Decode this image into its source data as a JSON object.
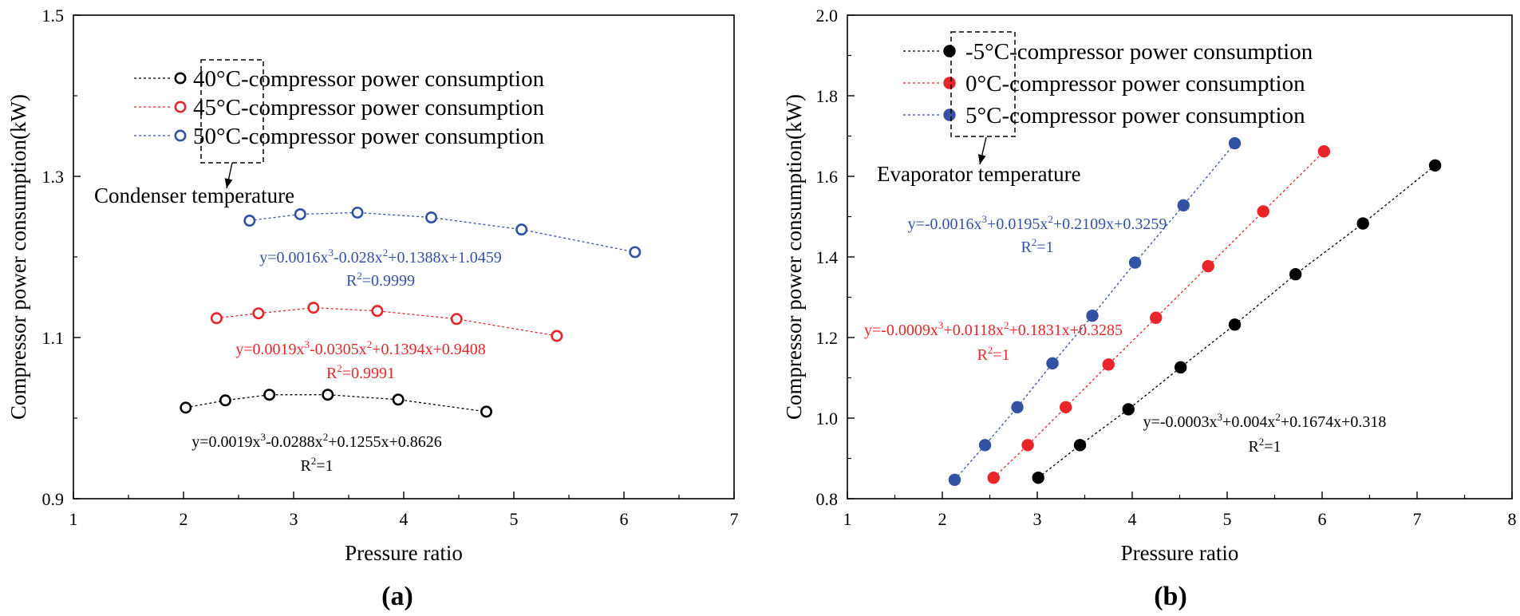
{
  "chart_data": [
    {
      "type": "line",
      "panel_label": "(a)",
      "marker": "open-circle",
      "xlabel": "Pressure ratio",
      "ylabel": "Compressor power consumption(kW)",
      "xlim": [
        1,
        7
      ],
      "ylim": [
        0.9,
        1.5
      ],
      "xticks": [
        1,
        2,
        3,
        4,
        5,
        6,
        7
      ],
      "xtick_labels": [
        "1",
        "2",
        "3",
        "4",
        "5",
        "6",
        "7"
      ],
      "yticks": [
        0.9,
        1.1,
        1.3,
        1.5
      ],
      "ytick_labels": [
        "0.9",
        "1.1",
        "1.3",
        "1.5"
      ],
      "annotation": "Condenser temperature",
      "series": [
        {
          "name": "40°C-compressor power consumption",
          "color": "#000000",
          "x": [
            2.02,
            2.38,
            2.78,
            3.31,
            3.95,
            4.75
          ],
          "y": [
            1.013,
            1.022,
            1.029,
            1.029,
            1.023,
            1.008
          ],
          "equation": "y=0.0019x3-0.0288x2+0.1255x+0.8626",
          "equation_parts": {
            "c1": "y=0.0019x",
            "e1": "3",
            "c2": "-0.0288x",
            "e2": "2",
            "c3": "+0.1255x+0.8626"
          },
          "r2": {
            "base": "R",
            "sup": "2",
            "rest": "=1"
          }
        },
        {
          "name": "45°C-compressor power consumption",
          "color": "#e8262a",
          "x": [
            2.3,
            2.68,
            3.18,
            3.76,
            4.48,
            5.39
          ],
          "y": [
            1.124,
            1.13,
            1.137,
            1.133,
            1.123,
            1.102
          ],
          "equation": "y=0.0019x3-0.0305x2+0.1394x+0.9408",
          "equation_parts": {
            "c1": "y=0.0019x",
            "e1": "3",
            "c2": "-0.0305x",
            "e2": "2",
            "c3": "+0.1394x+0.9408"
          },
          "r2": {
            "base": "R",
            "sup": "2",
            "rest": "=0.9991"
          }
        },
        {
          "name": "50°C-compressor power consumption",
          "color": "#3452a4",
          "x": [
            2.6,
            3.06,
            3.58,
            4.25,
            5.07,
            6.1
          ],
          "y": [
            1.245,
            1.253,
            1.255,
            1.249,
            1.234,
            1.206
          ],
          "equation": "y=0.0016x3-0.028x2+0.1388x+1.0459",
          "equation_parts": {
            "c1": "y=0.0016x",
            "e1": "3",
            "c2": "-0.028x",
            "e2": "2",
            "c3": "+0.1388x+1.0459"
          },
          "r2": {
            "base": "R",
            "sup": "2",
            "rest": "=0.9999"
          }
        }
      ]
    },
    {
      "type": "line",
      "panel_label": "(b)",
      "marker": "filled-circle",
      "xlabel": "Pressure ratio",
      "ylabel": "Compressor power consumption(kW)",
      "xlim": [
        1,
        8
      ],
      "ylim": [
        0.8,
        2.0
      ],
      "xticks": [
        1,
        2,
        3,
        4,
        5,
        6,
        7,
        8
      ],
      "xtick_labels": [
        "1",
        "2",
        "3",
        "4",
        "5",
        "6",
        "7",
        "8"
      ],
      "yticks": [
        0.8,
        1.0,
        1.2,
        1.4,
        1.6,
        1.8,
        2.0
      ],
      "ytick_labels": [
        "0.8",
        "1.0",
        "1.2",
        "1.4",
        "1.6",
        "1.8",
        "2.0"
      ],
      "annotation": "Evaporator temperature",
      "series": [
        {
          "name": "-5°C-compressor power consumption",
          "color": "#000000",
          "x": [
            3.01,
            3.45,
            3.96,
            4.51,
            5.08,
            5.72,
            6.43,
            7.19
          ],
          "y": [
            0.852,
            0.933,
            1.022,
            1.126,
            1.232,
            1.357,
            1.483,
            1.627
          ],
          "equation": "y=-0.0003x3+0.004x2+0.1674x+0.318",
          "equation_parts": {
            "c1": "y=-0.0003x",
            "e1": "3",
            "c2": "+0.004x",
            "e2": "2",
            "c3": "+0.1674x+0.318"
          },
          "r2": {
            "base": "R",
            "sup": "2",
            "rest": "=1"
          }
        },
        {
          "name": "0°C-compressor power consumption",
          "color": "#e8262a",
          "x": [
            2.54,
            2.9,
            3.3,
            3.75,
            4.25,
            4.8,
            5.38,
            6.02
          ],
          "y": [
            0.852,
            0.933,
            1.027,
            1.133,
            1.249,
            1.377,
            1.513,
            1.662
          ],
          "equation": "y=-0.0009x3+0.0118x2+0.1831x+0.3285",
          "equation_parts": {
            "c1": "y=-0.0009x",
            "e1": "3",
            "c2": "+0.0118x",
            "e2": "2",
            "c3": "+0.1831x+0.3285"
          },
          "r2": {
            "base": "R",
            "sup": "2",
            "rest": "=1"
          }
        },
        {
          "name": "5°C-compressor power consumption",
          "color": "#3452a4",
          "x": [
            2.13,
            2.45,
            2.79,
            3.16,
            3.58,
            4.03,
            4.54,
            5.08
          ],
          "y": [
            0.847,
            0.933,
            1.027,
            1.136,
            1.254,
            1.386,
            1.528,
            1.682
          ],
          "equation": "y=-0.0016x3+0.0195x2+0.2109x+0.3259",
          "equation_parts": {
            "c1": "y=-0.0016x",
            "e1": "3",
            "c2": "+0.0195x",
            "e2": "2",
            "c3": "+0.2109x+0.3259"
          },
          "r2": {
            "base": "R",
            "sup": "2",
            "rest": "=1"
          }
        }
      ]
    }
  ]
}
